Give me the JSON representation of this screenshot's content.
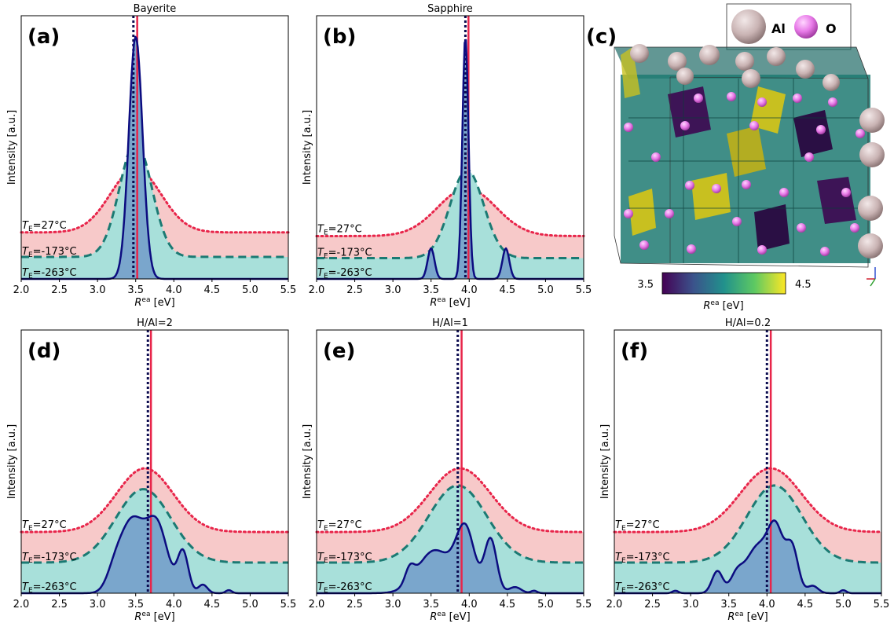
{
  "figure": {
    "legend": {
      "al_label": "Al",
      "o_label": "O"
    },
    "colorbar": {
      "min_label": "3.5",
      "max_label": "4.5",
      "label_main": "R",
      "label_sup": "ea",
      "label_unit": " [eV]"
    },
    "structure_label": "(c)",
    "axis_text": {
      "ylabel": "Intensity [a.u.]",
      "xlabel_main": "R",
      "xlabel_sup": "ea",
      "xlabel_unit": " [eV]"
    },
    "curve_labels": [
      {
        "prefix": "T",
        "sub": "E",
        "suffix": "=27°C"
      },
      {
        "prefix": "T",
        "sub": "E",
        "suffix": "=-173°C"
      },
      {
        "prefix": "T",
        "sub": "E",
        "suffix": "=-263°C"
      }
    ],
    "x_ticks": [
      "2.0",
      "2.5",
      "3.0",
      "3.5",
      "4.0",
      "4.5",
      "5.0",
      "5.5"
    ],
    "colors": {
      "t27": "#e8254a",
      "t27_fill": "#f7c9c9",
      "t173": "#1b7a73",
      "t173_fill": "#a8e0da",
      "t263": "#0c0c80",
      "t263_fill": "#7aa6cc",
      "mean_red": "#e8254a",
      "mean_dark": "#0c0c50"
    }
  },
  "chart_data": [
    {
      "type": "area",
      "label": "(a)",
      "title": "Bayerite",
      "xlim": [
        2.0,
        5.5
      ],
      "means": {
        "red": 3.52,
        "dark": 3.47
      },
      "baselines": {
        "t27": 0.38,
        "t173": 0.18,
        "t263": 0.0
      },
      "series": [
        {
          "name": "T_E=27°C",
          "peaks": [
            [
              3.5,
              0.52,
              0.33
            ]
          ]
        },
        {
          "name": "T_E=-173°C",
          "peaks": [
            [
              3.5,
              0.94,
              0.21
            ]
          ]
        },
        {
          "name": "T_E=-263°C",
          "peaks": [
            [
              3.5,
              1.98,
              0.09
            ]
          ]
        }
      ]
    },
    {
      "type": "area",
      "label": "(b)",
      "title": "Sapphire",
      "xlim": [
        2.0,
        5.5
      ],
      "means": {
        "red": 3.99,
        "dark": 3.95
      },
      "baselines": {
        "t27": 0.35,
        "t173": 0.17,
        "t263": 0.0
      },
      "series": [
        {
          "name": "T_E=27°C",
          "peaks": [
            [
              3.97,
              0.39,
              0.38
            ]
          ]
        },
        {
          "name": "T_E=-173°C",
          "peaks": [
            [
              3.97,
              0.72,
              0.22
            ]
          ]
        },
        {
          "name": "T_E=-263°C",
          "peaks": [
            [
              3.95,
              1.98,
              0.04
            ],
            [
              3.5,
              0.25,
              0.045
            ],
            [
              4.48,
              0.25,
              0.045
            ]
          ]
        }
      ]
    },
    {
      "type": "area",
      "label": "(d)",
      "title": "H/Al=2",
      "xlim": [
        2.0,
        5.5
      ],
      "means": {
        "red": 3.7,
        "dark": 3.66
      },
      "baselines": {
        "t27": 0.5,
        "t173": 0.25,
        "t263": 0.0
      },
      "series": [
        {
          "name": "T_E=27°C",
          "peaks": [
            [
              3.62,
              0.52,
              0.37
            ]
          ]
        },
        {
          "name": "T_E=-173°C",
          "peaks": [
            [
              3.6,
              0.6,
              0.36
            ]
          ]
        },
        {
          "name": "T_E=-263°C",
          "peaks": [
            [
              3.45,
              0.58,
              0.16
            ],
            [
              3.78,
              0.54,
              0.14
            ],
            [
              4.12,
              0.33,
              0.07
            ],
            [
              3.22,
              0.12,
              0.1
            ],
            [
              4.38,
              0.07,
              0.06
            ],
            [
              4.72,
              0.025,
              0.04
            ]
          ]
        }
      ]
    },
    {
      "type": "area",
      "label": "(e)",
      "title": "H/Al=1",
      "xlim": [
        2.0,
        5.5
      ],
      "means": {
        "red": 3.9,
        "dark": 3.85
      },
      "baselines": {
        "t27": 0.5,
        "t173": 0.25,
        "t263": 0.0
      },
      "series": [
        {
          "name": "T_E=27°C",
          "peaks": [
            [
              3.88,
              0.52,
              0.4
            ]
          ]
        },
        {
          "name": "T_E=-173°C",
          "peaks": [
            [
              3.85,
              0.63,
              0.38
            ]
          ]
        },
        {
          "name": "T_E=-263°C",
          "peaks": [
            [
              3.55,
              0.35,
              0.22
            ],
            [
              3.95,
              0.5,
              0.12
            ],
            [
              4.28,
              0.44,
              0.08
            ],
            [
              3.22,
              0.12,
              0.06
            ],
            [
              4.6,
              0.05,
              0.08
            ],
            [
              4.85,
              0.02,
              0.04
            ]
          ]
        }
      ]
    },
    {
      "type": "area",
      "label": "(f)",
      "title": "H/Al=0.2",
      "xlim": [
        2.0,
        5.5
      ],
      "means": {
        "red": 4.05,
        "dark": 4.0
      },
      "baselines": {
        "t27": 0.5,
        "t173": 0.25,
        "t263": 0.0
      },
      "series": [
        {
          "name": "T_E=27°C",
          "peaks": [
            [
              4.05,
              0.52,
              0.4
            ]
          ]
        },
        {
          "name": "T_E=-173°C",
          "peaks": [
            [
              4.1,
              0.63,
              0.36
            ]
          ]
        },
        {
          "name": "T_E=-263°C",
          "peaks": [
            [
              3.88,
              0.38,
              0.16
            ],
            [
              4.12,
              0.45,
              0.1
            ],
            [
              4.33,
              0.36,
              0.08
            ],
            [
              3.35,
              0.18,
              0.07
            ],
            [
              3.6,
              0.12,
              0.08
            ],
            [
              4.6,
              0.06,
              0.07
            ],
            [
              5.0,
              0.025,
              0.04
            ],
            [
              2.8,
              0.02,
              0.04
            ]
          ]
        }
      ]
    }
  ]
}
